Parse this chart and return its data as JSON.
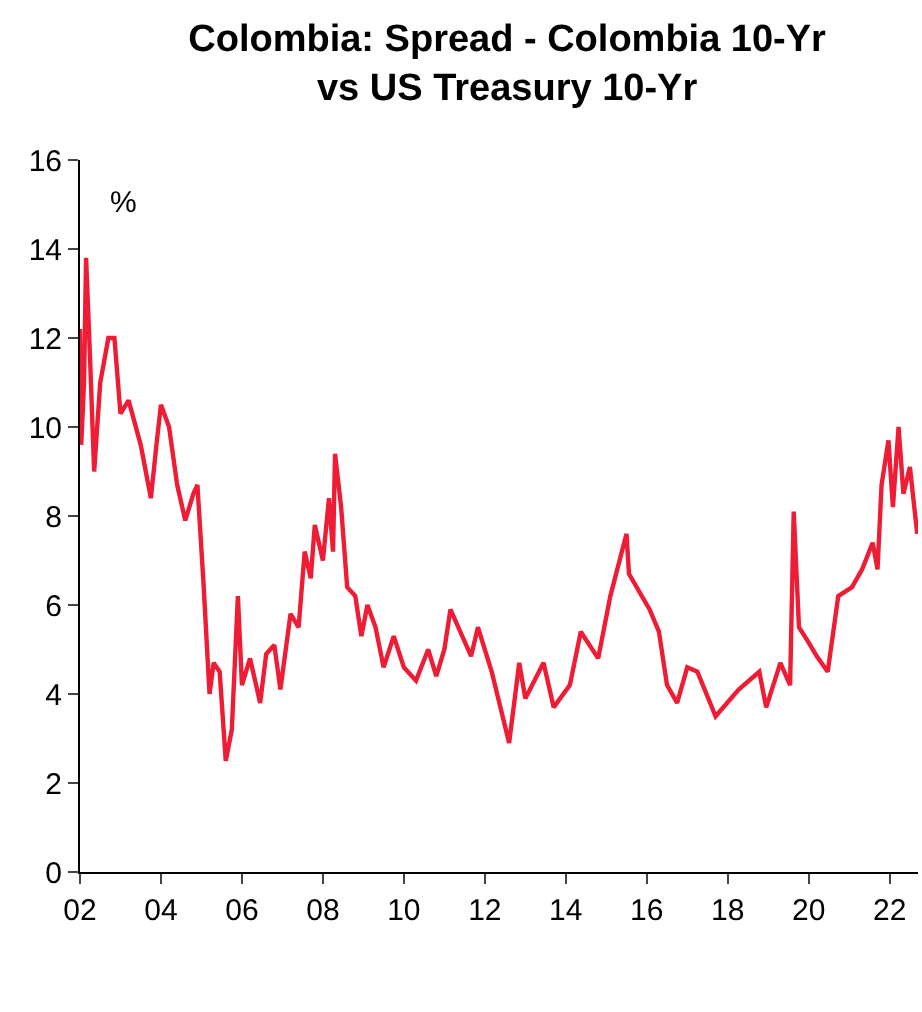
{
  "chart_data": {
    "type": "line",
    "title": "Colombia: Spread - Colombia 10-Yr\nvs US Treasury 10-Yr",
    "annotations": [
      "%"
    ],
    "x": [
      2002.0,
      2002.03,
      2002.1,
      2002.15,
      2002.25,
      2002.35,
      2002.5,
      2002.7,
      2002.85,
      2003.0,
      2003.2,
      2003.5,
      2003.75,
      2003.9,
      2004.0,
      2004.2,
      2004.4,
      2004.6,
      2004.8,
      2004.9,
      2005.05,
      2005.2,
      2005.3,
      2005.45,
      2005.6,
      2005.75,
      2005.9,
      2006.0,
      2006.2,
      2006.45,
      2006.6,
      2006.8,
      2006.95,
      2007.2,
      2007.4,
      2007.55,
      2007.7,
      2007.8,
      2008.0,
      2008.15,
      2008.25,
      2008.3,
      2008.45,
      2008.6,
      2008.8,
      2008.95,
      2009.1,
      2009.3,
      2009.5,
      2009.75,
      2010.0,
      2010.3,
      2010.6,
      2010.8,
      2011.0,
      2011.15,
      2011.66,
      2011.83,
      2012.17,
      2012.6,
      2012.85,
      2013.0,
      2013.45,
      2013.7,
      2014.1,
      2014.37,
      2014.8,
      2015.1,
      2015.5,
      2015.56,
      2016.07,
      2016.3,
      2016.5,
      2016.75,
      2017.0,
      2017.25,
      2017.7,
      2018.27,
      2018.78,
      2018.95,
      2019.3,
      2019.54,
      2019.63,
      2019.76,
      2019.97,
      2020.2,
      2020.47,
      2020.73,
      2021.07,
      2021.32,
      2021.58,
      2021.7,
      2021.8,
      2021.97,
      2022.08,
      2022.22,
      2022.34,
      2022.5,
      2022.68
    ],
    "series": [
      {
        "color": "#ee1c35",
        "values": [
          12.2,
          9.6,
          11.0,
          13.8,
          11.5,
          9.0,
          11.0,
          12.0,
          12.0,
          10.3,
          10.6,
          9.6,
          8.4,
          9.7,
          10.5,
          10.0,
          8.7,
          7.9,
          8.5,
          8.7,
          6.5,
          4.0,
          4.7,
          4.5,
          2.5,
          3.2,
          6.2,
          4.2,
          4.8,
          3.8,
          4.9,
          5.1,
          4.1,
          5.8,
          5.5,
          7.2,
          6.6,
          7.8,
          7.0,
          8.4,
          7.2,
          9.4,
          8.2,
          6.4,
          6.2,
          5.3,
          6.0,
          5.5,
          4.6,
          5.3,
          4.6,
          4.3,
          5.0,
          4.4,
          5.0,
          5.9,
          4.85,
          5.5,
          4.5,
          2.9,
          4.7,
          3.9,
          4.7,
          3.7,
          4.2,
          5.4,
          4.8,
          6.2,
          7.6,
          6.7,
          5.9,
          5.4,
          4.2,
          3.8,
          4.6,
          4.5,
          3.5,
          4.1,
          4.5,
          3.7,
          4.7,
          4.2,
          8.1,
          5.5,
          5.2,
          4.85,
          4.5,
          6.2,
          6.4,
          6.8,
          7.4,
          6.8,
          8.7,
          9.7,
          8.2,
          10.0,
          8.5,
          9.1,
          7.6
        ]
      }
    ],
    "xlim": [
      2002,
      2022.7
    ],
    "xticks": [
      {
        "value": 2002,
        "label": "02"
      },
      {
        "value": 2004,
        "label": "04"
      },
      {
        "value": 2006,
        "label": "06"
      },
      {
        "value": 2008,
        "label": "08"
      },
      {
        "value": 2010,
        "label": "10"
      },
      {
        "value": 2012,
        "label": "12"
      },
      {
        "value": 2014,
        "label": "14"
      },
      {
        "value": 2016,
        "label": "16"
      },
      {
        "value": 2018,
        "label": "18"
      },
      {
        "value": 2020,
        "label": "20"
      },
      {
        "value": 2022,
        "label": "22"
      }
    ],
    "ylim": [
      0,
      16
    ],
    "yticks": [
      0,
      2,
      4,
      6,
      8,
      10,
      12,
      14,
      16
    ],
    "line_style": "solid",
    "marker": "none"
  }
}
